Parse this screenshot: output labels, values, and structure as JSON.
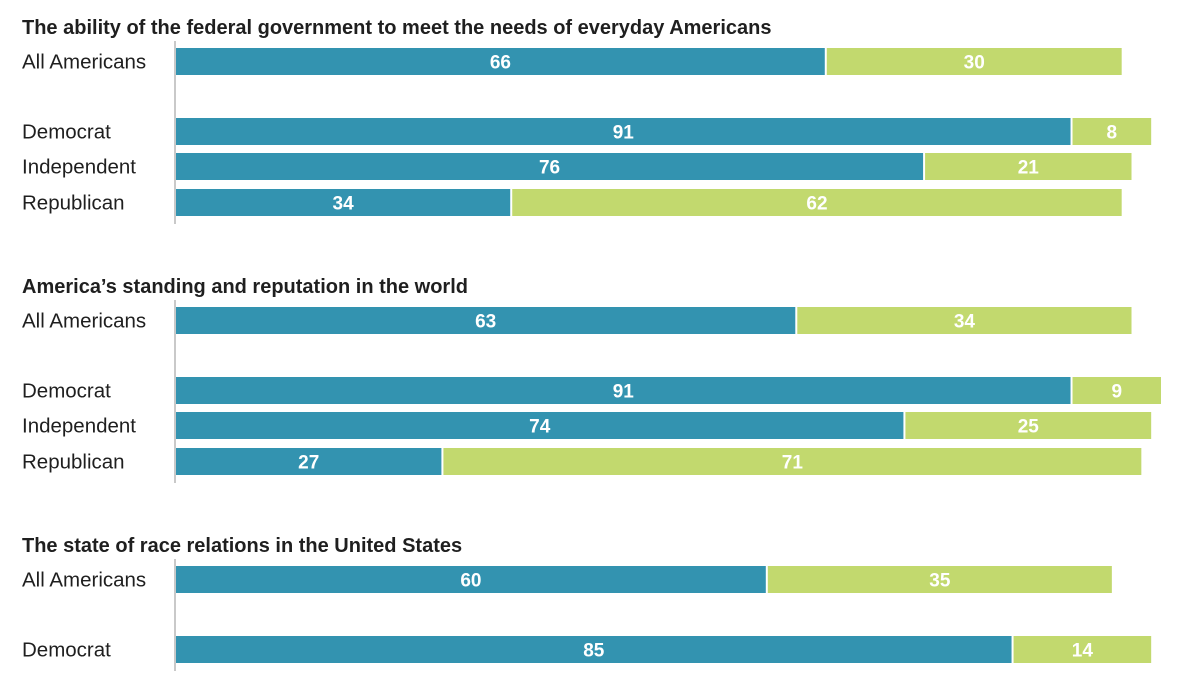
{
  "chart_data": [
    {
      "type": "bar",
      "orientation": "horizontal",
      "stacked": true,
      "title": "The ability of the federal government to meet the needs of everyday Americans",
      "categories": [
        "All Americans",
        "Democrat",
        "Independent",
        "Republican"
      ],
      "series": [
        {
          "name": "series-1",
          "color": "#3393b0",
          "values": [
            66,
            91,
            76,
            34
          ]
        },
        {
          "name": "series-2",
          "color": "#c2d96e",
          "values": [
            30,
            8,
            21,
            62
          ]
        }
      ]
    },
    {
      "type": "bar",
      "orientation": "horizontal",
      "stacked": true,
      "title": "America’s standing and reputation in the world",
      "categories": [
        "All Americans",
        "Democrat",
        "Independent",
        "Republican"
      ],
      "series": [
        {
          "name": "series-1",
          "color": "#3393b0",
          "values": [
            63,
            91,
            74,
            27
          ]
        },
        {
          "name": "series-2",
          "color": "#c2d96e",
          "values": [
            34,
            9,
            25,
            71
          ]
        }
      ]
    },
    {
      "type": "bar",
      "orientation": "horizontal",
      "stacked": true,
      "title": "The state of race relations in the United States",
      "categories": [
        "All Americans",
        "Democrat"
      ],
      "series": [
        {
          "name": "series-1",
          "color": "#3393b0",
          "values": [
            60,
            85
          ]
        },
        {
          "name": "series-2",
          "color": "#c2d96e",
          "values": [
            35,
            14
          ]
        }
      ]
    }
  ],
  "colors": {
    "primary_bar": "#3393b0",
    "secondary_bar": "#c2d96e",
    "axis_line": "#c9c9c9",
    "text": "#1f1f1f",
    "value_text": "#ffffff"
  }
}
